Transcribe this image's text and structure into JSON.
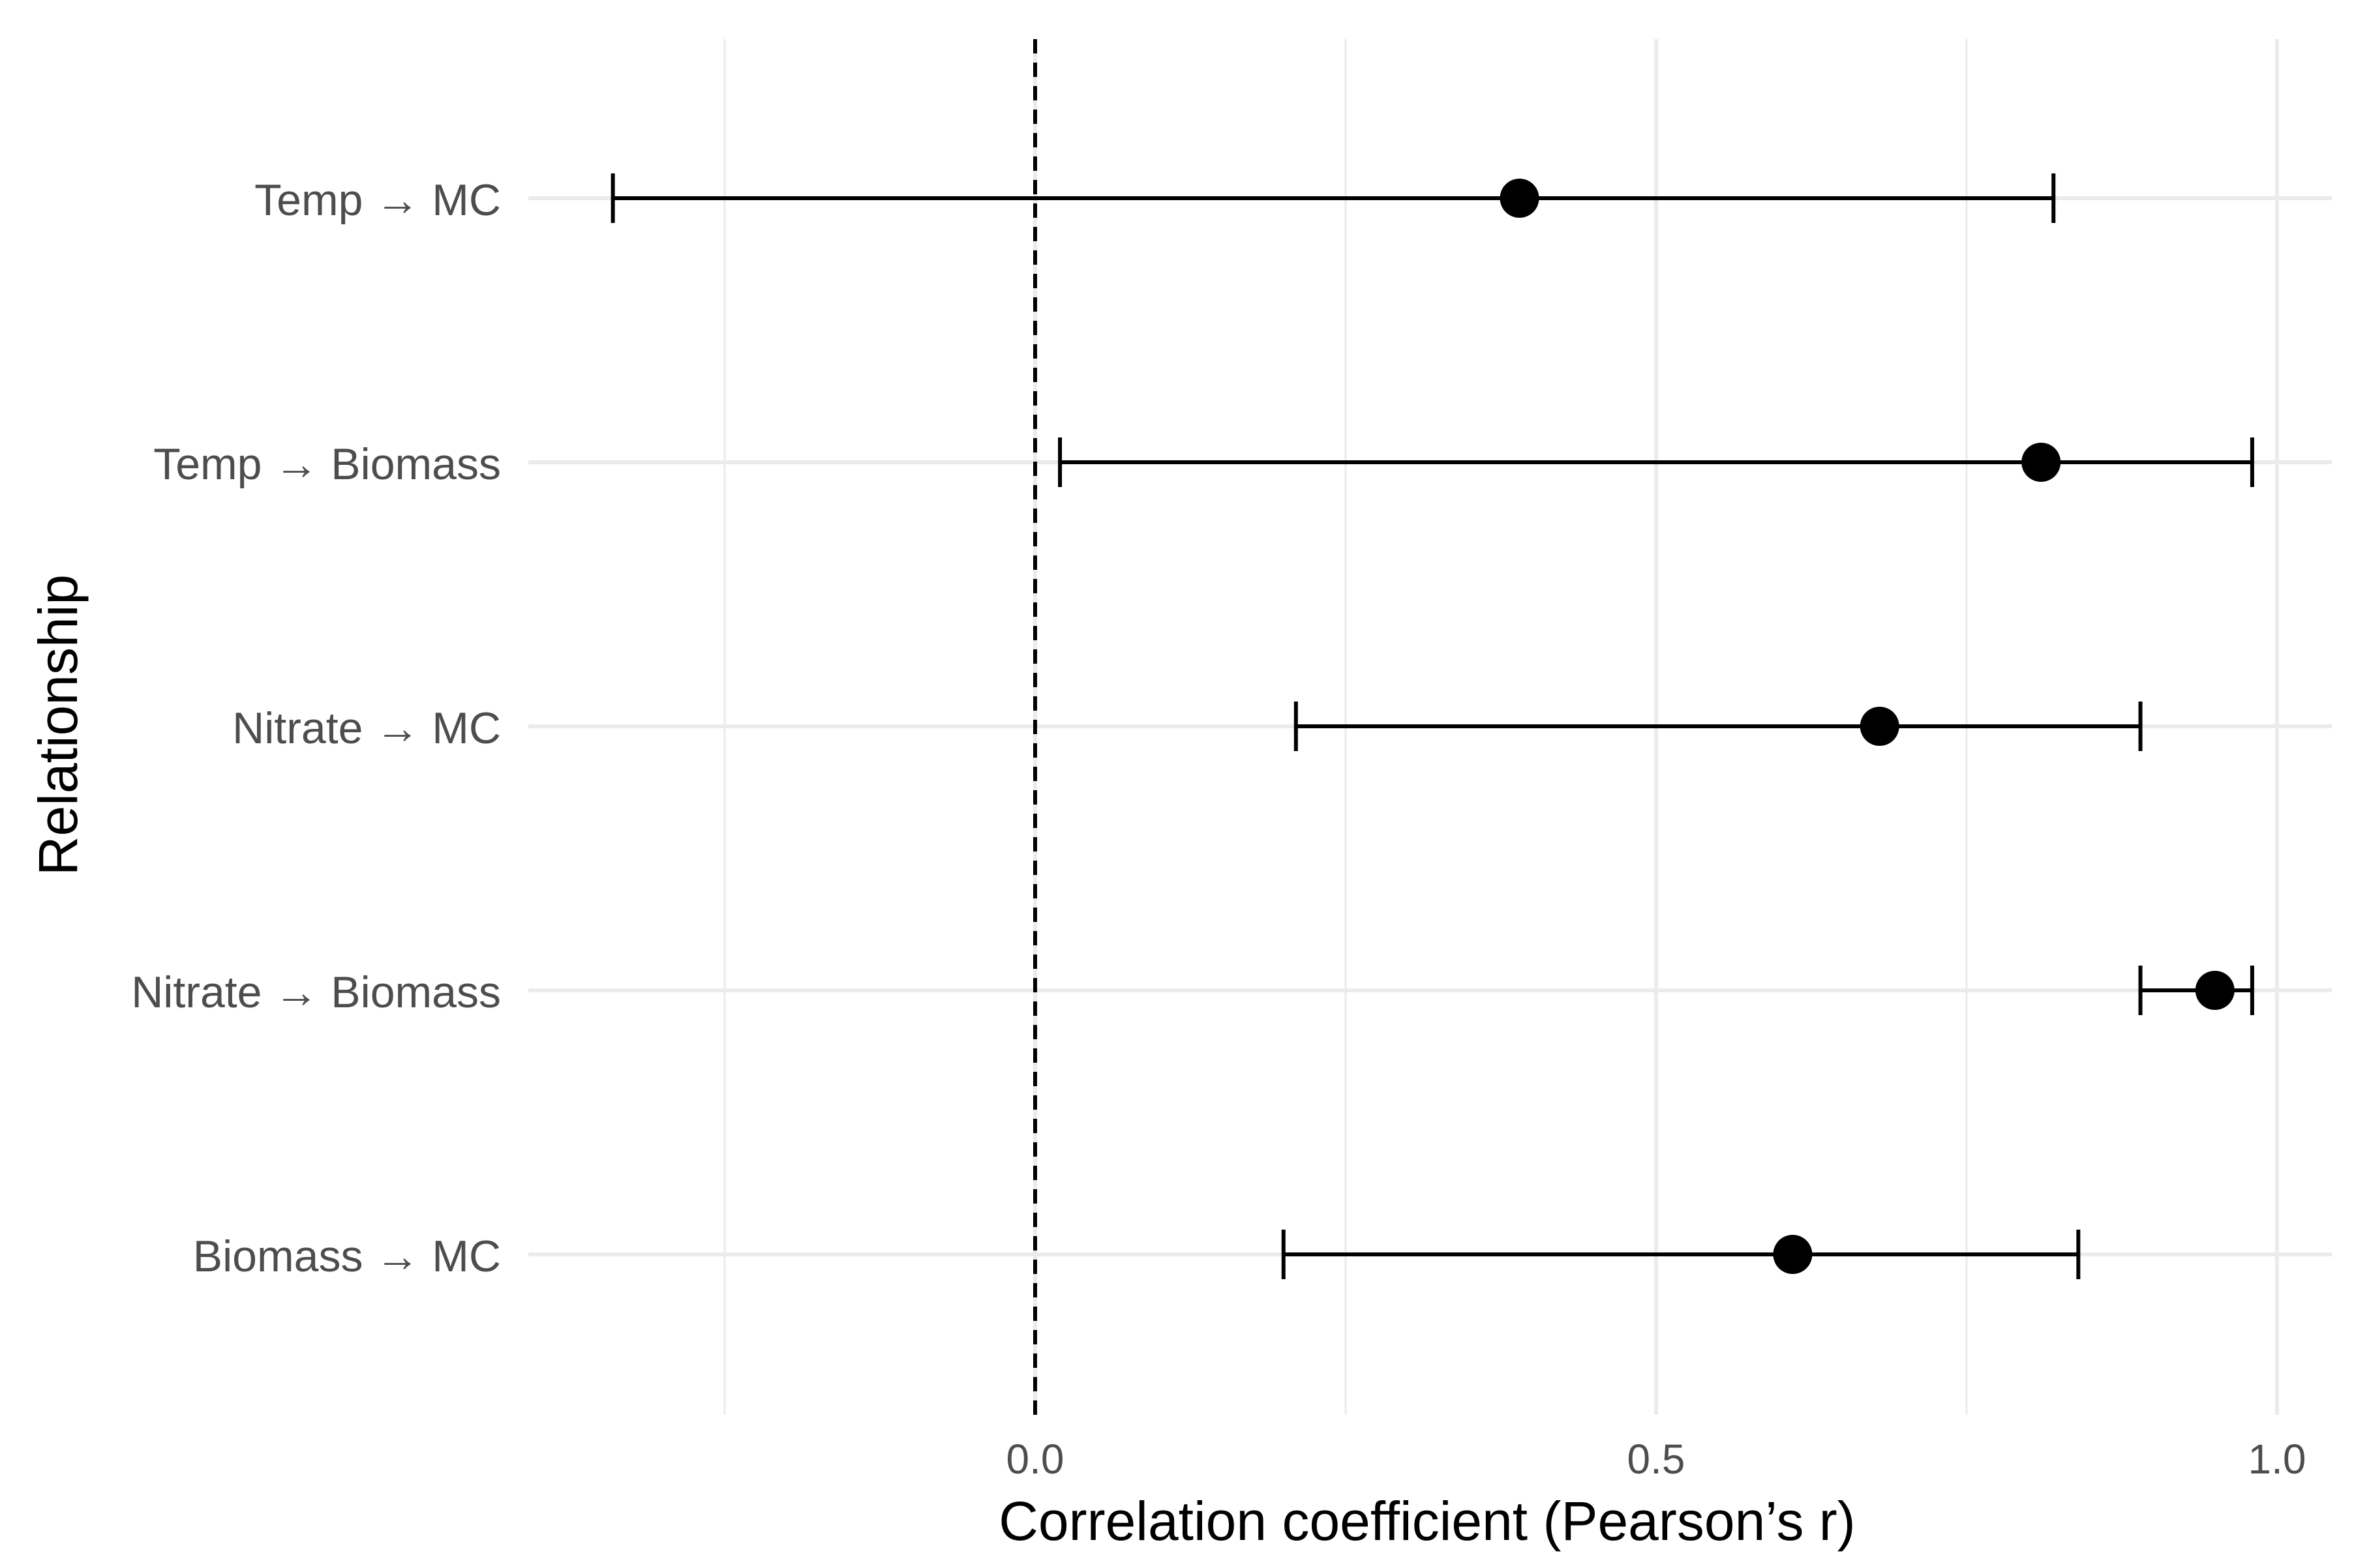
{
  "chart_data": {
    "type": "scatter",
    "subtype": "forest-plot",
    "title": "",
    "xlabel": "Correlation coefficient (Pearson’s r)",
    "ylabel": "Relationship",
    "xlim": [
      -0.4,
      1.04
    ],
    "x_ticks": [
      0.0,
      0.5,
      1.0
    ],
    "x_tick_labels": [
      "0.0",
      "0.5",
      "1.0"
    ],
    "x_minor_gridlines": [
      -0.25,
      0.25,
      0.75
    ],
    "reference_line": {
      "x": 0,
      "style": "dashed"
    },
    "grid": true,
    "legend": "none",
    "categories": [
      "Temp → MC",
      "Temp → Biomass",
      "Nitrate → MC",
      "Nitrate → Biomass",
      "Biomass → MC"
    ],
    "estimates": [
      0.39,
      0.81,
      0.68,
      0.95,
      0.61
    ],
    "ci_lower": [
      -0.34,
      0.02,
      0.21,
      0.89,
      0.2
    ],
    "ci_upper": [
      0.82,
      0.98,
      0.89,
      0.98,
      0.84
    ],
    "colors": {
      "points": "#000000",
      "errorbars": "#000000",
      "grid": "#ebebeb",
      "tick_text": "#4d4d4d",
      "axis_title": "#000000"
    }
  }
}
